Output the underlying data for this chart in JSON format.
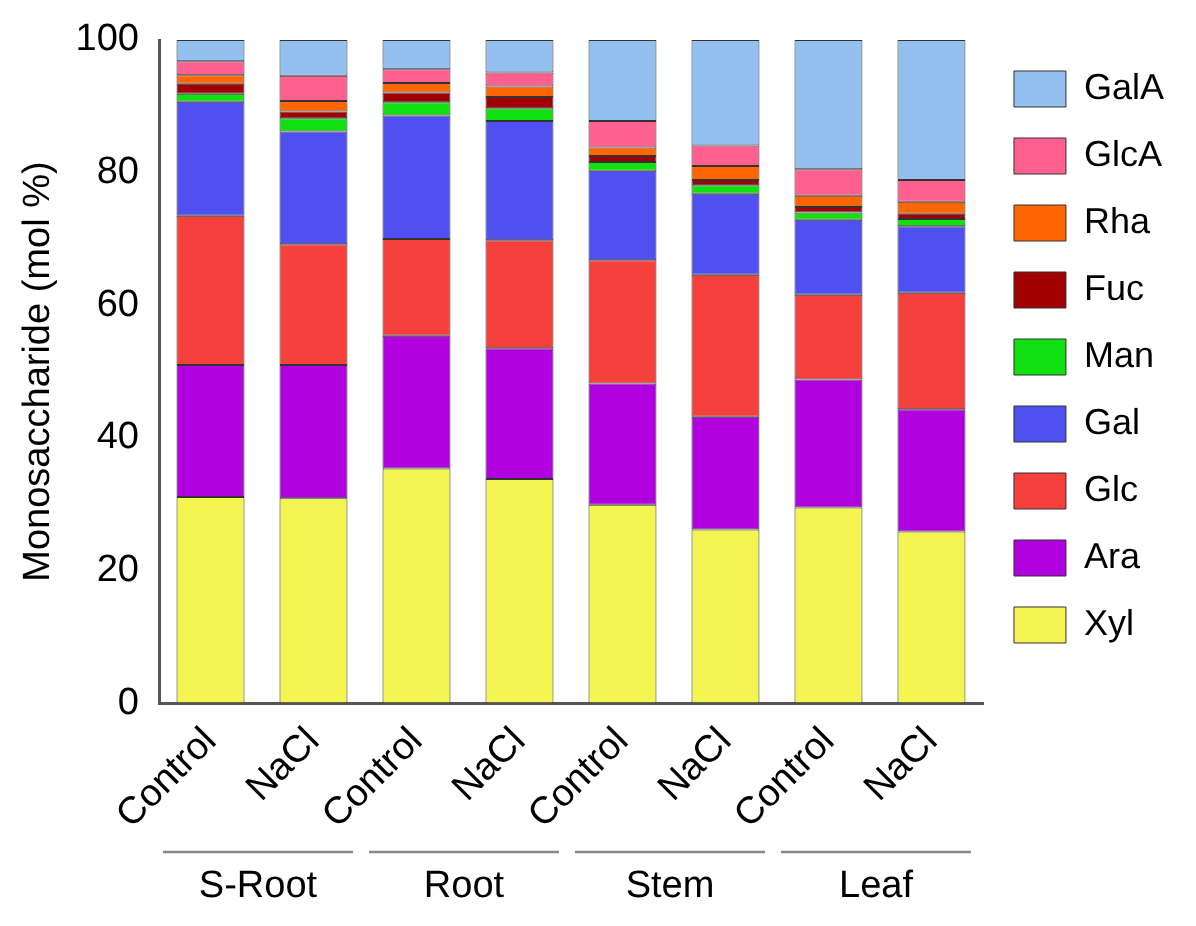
{
  "chart_data": {
    "type": "bar",
    "stacked": true,
    "ylabel": "Monosaccharide (mol %)",
    "categories": [
      "Control",
      "NaCl",
      "Control",
      "NaCl",
      "Control",
      "NaCl",
      "Control",
      "NaCl"
    ],
    "annotations": [
      "S-Root",
      "Root",
      "Stem",
      "Leaf"
    ],
    "ylim": [
      0,
      100
    ],
    "yticks": [
      0,
      20,
      40,
      60,
      80,
      100
    ],
    "grid": false,
    "legend": "right",
    "series": [
      {
        "name": "Xyl",
        "color": "#f5f552",
        "values": [
          31.1,
          30.9,
          35.4,
          33.8,
          29.9,
          26.2,
          29.5,
          25.9
        ]
      },
      {
        "name": "Ara",
        "color": "#b000e0",
        "values": [
          19.9,
          20.1,
          20.0,
          19.7,
          18.3,
          17.0,
          19.3,
          18.4
        ]
      },
      {
        "name": "Glc",
        "color": "#f5403c",
        "values": [
          22.5,
          18.2,
          14.6,
          16.3,
          18.6,
          21.4,
          12.8,
          17.6
        ]
      },
      {
        "name": "Gal",
        "color": "#5050f0",
        "values": [
          17.2,
          17.0,
          18.6,
          18.0,
          13.5,
          12.2,
          11.3,
          10.0
        ]
      },
      {
        "name": "Man",
        "color": "#10e010",
        "values": [
          1.2,
          2.0,
          2.0,
          1.9,
          1.3,
          1.3,
          1.1,
          1.1
        ]
      },
      {
        "name": "Fuc",
        "color": "#a00000",
        "values": [
          1.5,
          1.0,
          1.5,
          1.7,
          0.9,
          0.8,
          0.8,
          0.8
        ]
      },
      {
        "name": "Rha",
        "color": "#ff6600",
        "values": [
          1.3,
          1.6,
          1.4,
          1.6,
          1.3,
          2.1,
          1.7,
          1.8
        ]
      },
      {
        "name": "GlcA",
        "color": "#ff6090",
        "values": [
          2.1,
          3.8,
          2.1,
          2.1,
          4.0,
          3.1,
          4.0,
          3.3
        ]
      },
      {
        "name": "GalA",
        "color": "#94c0f0",
        "values": [
          3.2,
          5.4,
          4.4,
          4.9,
          12.2,
          15.9,
          19.5,
          21.1
        ]
      }
    ]
  }
}
